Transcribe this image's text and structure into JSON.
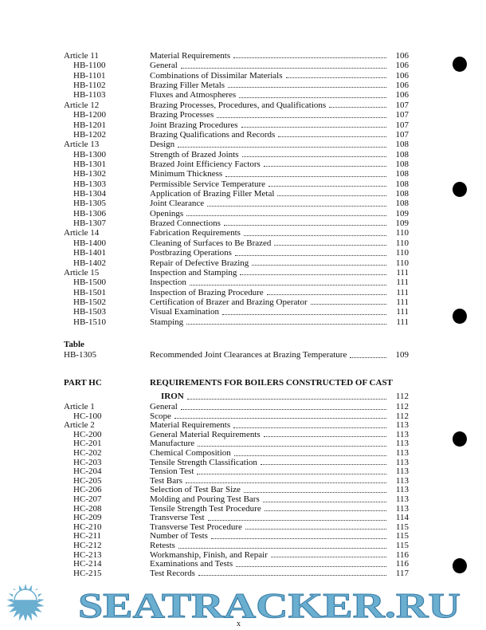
{
  "section_hb": [
    {
      "code": "Article 11",
      "title": "Material Requirements",
      "page": "106",
      "level": 0
    },
    {
      "code": "HB-1100",
      "title": "General",
      "page": "106",
      "level": 1
    },
    {
      "code": "HB-1101",
      "title": "Combinations of Dissimilar Materials",
      "page": "106",
      "level": 1
    },
    {
      "code": "HB-1102",
      "title": "Brazing Filler Metals",
      "page": "106",
      "level": 1
    },
    {
      "code": "HB-1103",
      "title": "Fluxes and Atmospheres",
      "page": "106",
      "level": 1
    },
    {
      "code": "Article 12",
      "title": "Brazing Processes, Procedures, and Qualifications",
      "page": "107",
      "level": 0
    },
    {
      "code": "HB-1200",
      "title": "Brazing Processes",
      "page": "107",
      "level": 1
    },
    {
      "code": "HB-1201",
      "title": "Joint Brazing Procedures",
      "page": "107",
      "level": 1
    },
    {
      "code": "HB-1202",
      "title": "Brazing Qualifications and Records",
      "page": "107",
      "level": 1
    },
    {
      "code": "Article 13",
      "title": "Design",
      "page": "108",
      "level": 0
    },
    {
      "code": "HB-1300",
      "title": "Strength of Brazed Joints",
      "page": "108",
      "level": 1
    },
    {
      "code": "HB-1301",
      "title": "Brazed Joint Efficiency Factors",
      "page": "108",
      "level": 1
    },
    {
      "code": "HB-1302",
      "title": "Minimum Thickness",
      "page": "108",
      "level": 1
    },
    {
      "code": "HB-1303",
      "title": "Permissible Service Temperature",
      "page": "108",
      "level": 1
    },
    {
      "code": "HB-1304",
      "title": "Application of Brazing Filler Metal",
      "page": "108",
      "level": 1
    },
    {
      "code": "HB-1305",
      "title": "Joint Clearance",
      "page": "108",
      "level": 1
    },
    {
      "code": "HB-1306",
      "title": "Openings",
      "page": "109",
      "level": 1
    },
    {
      "code": "HB-1307",
      "title": "Brazed Connections",
      "page": "109",
      "level": 1
    },
    {
      "code": "Article 14",
      "title": "Fabrication Requirements",
      "page": "110",
      "level": 0
    },
    {
      "code": "HB-1400",
      "title": "Cleaning of Surfaces to Be Brazed",
      "page": "110",
      "level": 1
    },
    {
      "code": "HB-1401",
      "title": "Postbrazing Operations",
      "page": "110",
      "level": 1
    },
    {
      "code": "HB-1402",
      "title": "Repair of Defective Brazing",
      "page": "110",
      "level": 1
    },
    {
      "code": "Article 15",
      "title": "Inspection and Stamping",
      "page": "111",
      "level": 0
    },
    {
      "code": "HB-1500",
      "title": "Inspection",
      "page": "111",
      "level": 1
    },
    {
      "code": "HB-1501",
      "title": "Inspection of Brazing Procedure",
      "page": "111",
      "level": 1
    },
    {
      "code": "HB-1502",
      "title": "Certification of Brazer and Brazing Operator",
      "page": "111",
      "level": 1
    },
    {
      "code": "HB-1503",
      "title": "Visual Examination",
      "page": "111",
      "level": 1
    },
    {
      "code": "HB-1510",
      "title": "Stamping",
      "page": "111",
      "level": 1
    }
  ],
  "table_section": {
    "heading": "Table",
    "code": "HB-1305",
    "title": "Recommended Joint Clearances at Brazing Temperature",
    "page": "109"
  },
  "part_hc": {
    "code": "PART HC",
    "title_line1": "REQUIREMENTS FOR BOILERS CONSTRUCTED OF CAST",
    "title_line2": "IRON",
    "page": "112"
  },
  "section_hc": [
    {
      "code": "Article 1",
      "title": "General",
      "page": "112",
      "level": 0
    },
    {
      "code": "HC-100",
      "title": "Scope",
      "page": "112",
      "level": 1
    },
    {
      "code": "Article 2",
      "title": "Material Requirements",
      "page": "113",
      "level": 0
    },
    {
      "code": "HC-200",
      "title": "General Material Requirements",
      "page": "113",
      "level": 1
    },
    {
      "code": "HC-201",
      "title": "Manufacture",
      "page": "113",
      "level": 1
    },
    {
      "code": "HC-202",
      "title": "Chemical Composition",
      "page": "113",
      "level": 1
    },
    {
      "code": "HC-203",
      "title": "Tensile Strength Classification",
      "page": "113",
      "level": 1
    },
    {
      "code": "HC-204",
      "title": "Tension Test",
      "page": "113",
      "level": 1
    },
    {
      "code": "HC-205",
      "title": "Test Bars",
      "page": "113",
      "level": 1
    },
    {
      "code": "HC-206",
      "title": "Selection of Test Bar Size",
      "page": "113",
      "level": 1
    },
    {
      "code": "HC-207",
      "title": "Molding and Pouring Test Bars",
      "page": "113",
      "level": 1
    },
    {
      "code": "HC-208",
      "title": "Tensile Strength Test Procedure",
      "page": "113",
      "level": 1
    },
    {
      "code": "HC-209",
      "title": "Transverse Test",
      "page": "114",
      "level": 1
    },
    {
      "code": "HC-210",
      "title": "Transverse Test Procedure",
      "page": "115",
      "level": 1
    },
    {
      "code": "HC-211",
      "title": "Number of Tests",
      "page": "115",
      "level": 1
    },
    {
      "code": "HC-212",
      "title": "Retests",
      "page": "115",
      "level": 1
    },
    {
      "code": "HC-213",
      "title": "Workmanship, Finish, and Repair",
      "page": "116",
      "level": 1
    },
    {
      "code": "HC-214",
      "title": "Examinations and Tests",
      "page": "116",
      "level": 1
    },
    {
      "code": "HC-215",
      "title": "Test Records",
      "page": "117",
      "level": 1
    }
  ],
  "footer": {
    "page_number": "x"
  },
  "watermark": {
    "text": "SEATRACKER.RU",
    "color": "#6aaed0"
  }
}
